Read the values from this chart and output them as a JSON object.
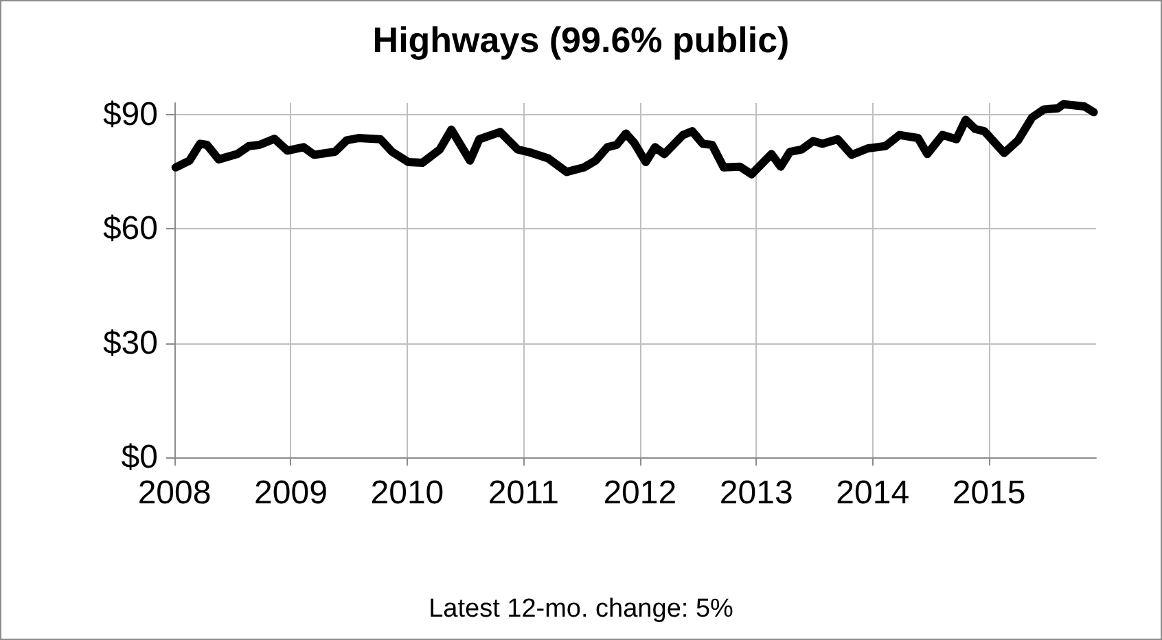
{
  "chart_data": {
    "type": "line",
    "title": "Highways (99.6% public)",
    "annotations": [
      "Latest 12-mo. change: 5%"
    ],
    "x": [
      2008.01,
      2008.13,
      2008.22,
      2008.28,
      2008.38,
      2008.54,
      2008.64,
      2008.73,
      2008.86,
      2008.97,
      2009.11,
      2009.2,
      2009.38,
      2009.48,
      2009.58,
      2009.77,
      2009.87,
      2010.01,
      2010.13,
      2010.28,
      2010.38,
      2010.54,
      2010.62,
      2010.8,
      2010.95,
      2011.07,
      2011.21,
      2011.37,
      2011.52,
      2011.62,
      2011.72,
      2011.8,
      2011.88,
      2011.95,
      2012.05,
      2012.13,
      2012.21,
      2012.37,
      2012.45,
      2012.54,
      2012.62,
      2012.72,
      2012.86,
      2012.96,
      2013.13,
      2013.21,
      2013.29,
      2013.39,
      2013.49,
      2013.57,
      2013.7,
      2013.82,
      2013.96,
      2014.11,
      2014.23,
      2014.39,
      2014.47,
      2014.6,
      2014.72,
      2014.8,
      2014.88,
      2014.96,
      2015.13,
      2015.25,
      2015.37,
      2015.47,
      2015.59,
      2015.64,
      2015.82,
      2015.9
    ],
    "series": [
      {
        "color": "#000000",
        "values": [
          76.1,
          77.9,
          82.3,
          82.0,
          78.2,
          79.6,
          81.7,
          82.0,
          83.6,
          80.5,
          81.4,
          79.4,
          80.2,
          83.2,
          83.8,
          83.5,
          80.2,
          77.5,
          77.3,
          80.8,
          86.0,
          77.9,
          83.5,
          85.4,
          80.8,
          79.9,
          78.5,
          74.9,
          76.1,
          77.9,
          81.4,
          82.0,
          85.0,
          82.6,
          77.5,
          81.4,
          79.6,
          84.6,
          85.6,
          82.3,
          82.0,
          76.1,
          76.3,
          74.3,
          79.6,
          76.3,
          80.2,
          80.8,
          83.0,
          82.3,
          83.5,
          79.4,
          81.1,
          81.7,
          84.6,
          83.8,
          79.6,
          84.6,
          83.5,
          88.6,
          86.2,
          85.6,
          79.9,
          83.2,
          89.2,
          91.3,
          91.6,
          92.7,
          92.1,
          90.6
        ]
      }
    ],
    "xlim": [
      2008,
      2015.92
    ],
    "xticks": [
      2008,
      2009,
      2010,
      2011,
      2012,
      2013,
      2014,
      2015
    ],
    "ylim": [
      0,
      93
    ],
    "yticks": [
      {
        "value": 0,
        "label": "$0"
      },
      {
        "value": 30,
        "label": "$30"
      },
      {
        "value": 60,
        "label": "$60"
      },
      {
        "value": 90,
        "label": "$90"
      }
    ],
    "grid": true,
    "marker": "none",
    "line_style": "solid"
  }
}
